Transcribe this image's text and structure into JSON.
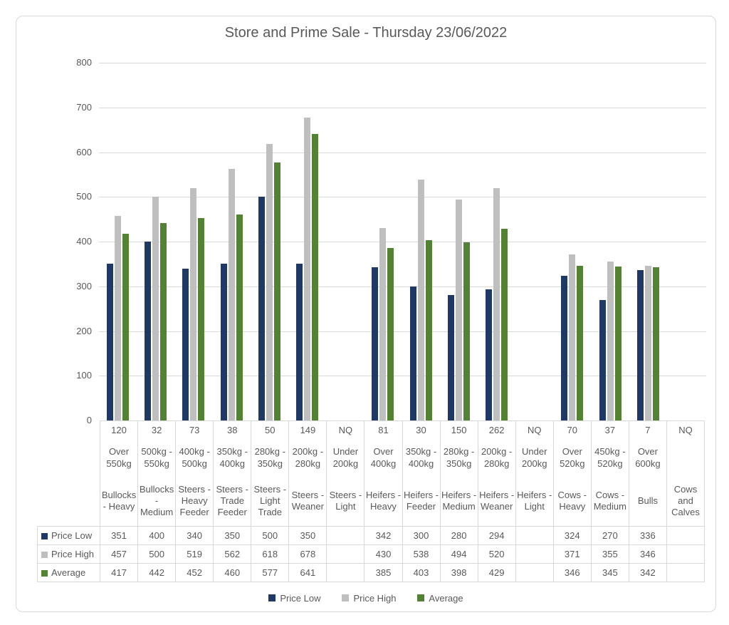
{
  "chart_data": {
    "type": "bar",
    "title": "Store and Prime Sale - Thursday 23/06/2022",
    "ylim": [
      0,
      800
    ],
    "ytick_interval": 100,
    "grid": true,
    "legend_position": "bottom",
    "categories": [
      {
        "count": "120",
        "weight": "Over 550kg",
        "group": "Bullocks - Heavy"
      },
      {
        "count": "32",
        "weight": "500kg - 550kg",
        "group": "Bullocks - Medium"
      },
      {
        "count": "73",
        "weight": "400kg - 500kg",
        "group": "Steers - Heavy Feeder"
      },
      {
        "count": "38",
        "weight": "350kg - 400kg",
        "group": "Steers - Trade Feeder"
      },
      {
        "count": "50",
        "weight": "280kg - 350kg",
        "group": "Steers - Light Trade"
      },
      {
        "count": "149",
        "weight": "200kg - 280kg",
        "group": "Steers - Weaner"
      },
      {
        "count": "NQ",
        "weight": "Under 200kg",
        "group": "Steers - Light"
      },
      {
        "count": "81",
        "weight": "Over 400kg",
        "group": "Heifers - Heavy"
      },
      {
        "count": "30",
        "weight": "350kg - 400kg",
        "group": "Heifers - Feeder"
      },
      {
        "count": "150",
        "weight": "280kg - 350kg",
        "group": "Heifers - Medium"
      },
      {
        "count": "262",
        "weight": "200kg - 280kg",
        "group": "Heifers - Weaner"
      },
      {
        "count": "NQ",
        "weight": "Under 200kg",
        "group": "Heifers - Light"
      },
      {
        "count": "70",
        "weight": "Over 520kg",
        "group": "Cows - Heavy"
      },
      {
        "count": "37",
        "weight": "450kg - 520kg",
        "group": "Cows - Medium"
      },
      {
        "count": "7",
        "weight": "Over 600kg",
        "group": "Bulls"
      },
      {
        "count": "NQ",
        "weight": "",
        "group": "Cows and Calves"
      }
    ],
    "series": [
      {
        "name": "Price Low",
        "color": "#1F3864",
        "values": [
          351,
          400,
          340,
          350,
          500,
          350,
          null,
          342,
          300,
          280,
          294,
          null,
          324,
          270,
          336,
          null
        ]
      },
      {
        "name": "Price High",
        "color": "#BFBFBF",
        "values": [
          457,
          500,
          519,
          562,
          618,
          678,
          null,
          430,
          538,
          494,
          520,
          null,
          371,
          355,
          346,
          null
        ]
      },
      {
        "name": "Average",
        "color": "#548235",
        "values": [
          417,
          442,
          452,
          460,
          577,
          641,
          null,
          385,
          403,
          398,
          429,
          null,
          346,
          345,
          342,
          null
        ]
      }
    ]
  },
  "colors": {
    "text": "#595959",
    "gridline": "#D9D9D9",
    "panel_border": "#D9D9D9"
  }
}
